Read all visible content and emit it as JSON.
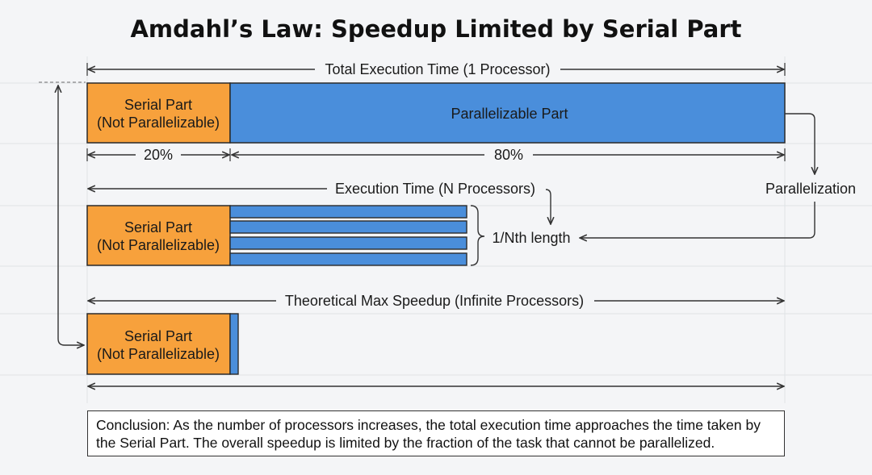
{
  "title": "Amdahl’s Law: Speedup Limited by Serial Part",
  "colors": {
    "serial": "#f7a13c",
    "parallel": "#4a8edb",
    "border": "#2b2b2b",
    "grid": "#dcdfe4"
  },
  "rows": {
    "one_processor": {
      "label": "Total Execution Time (1 Processor)",
      "serial_line1": "Serial Part",
      "serial_line2": "(Not Parallelizable)",
      "parallel_label": "Parallelizable Part",
      "serial_percent": "20%",
      "parallel_percent": "80%"
    },
    "n_processors": {
      "label": "Execution Time (N Processors)",
      "serial_line1": "Serial Part",
      "serial_line2": "(Not Parallelizable)",
      "lane_count": 4,
      "brace_label": "1/Nth length"
    },
    "infinite_processors": {
      "label": "Theoretical Max Speedup (Infinite Processors)",
      "serial_line1": "Serial Part",
      "serial_line2": "(Not Parallelizable)"
    }
  },
  "side_label": "Parallelization",
  "conclusion": "Conclusion: As the number of processors increases, the total execution time approaches the time taken by the Serial Part. The overall speedup is limited by the fraction of the task that cannot be parallelized."
}
